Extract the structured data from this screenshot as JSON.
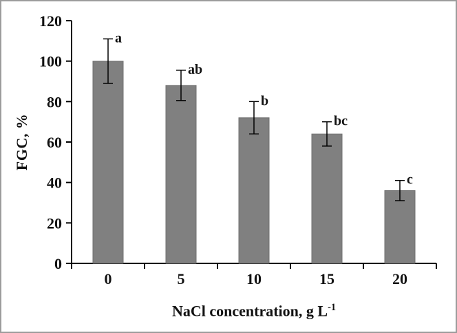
{
  "figure": {
    "background": "#ffffff",
    "border_color": "#9c9c9c"
  },
  "chart_data": {
    "type": "bar",
    "title": "",
    "xlabel_base": "NaCl concentration, g L",
    "xlabel_sup": "-1",
    "ylabel": "FGC, %",
    "categories": [
      "0",
      "5",
      "10",
      "15",
      "20"
    ],
    "values": [
      100,
      88,
      72,
      64,
      36
    ],
    "errors": [
      11,
      7.5,
      8,
      6,
      5
    ],
    "sig_letters": [
      "a",
      "ab",
      "b",
      "bc",
      "c"
    ],
    "ylim": [
      0,
      120
    ],
    "yticks": [
      0,
      20,
      40,
      60,
      80,
      100,
      120
    ],
    "bar_color": "#808080",
    "bar_edge_color": "#6f6f6f",
    "axis_color": "#000000",
    "grid": false,
    "legend": false
  }
}
